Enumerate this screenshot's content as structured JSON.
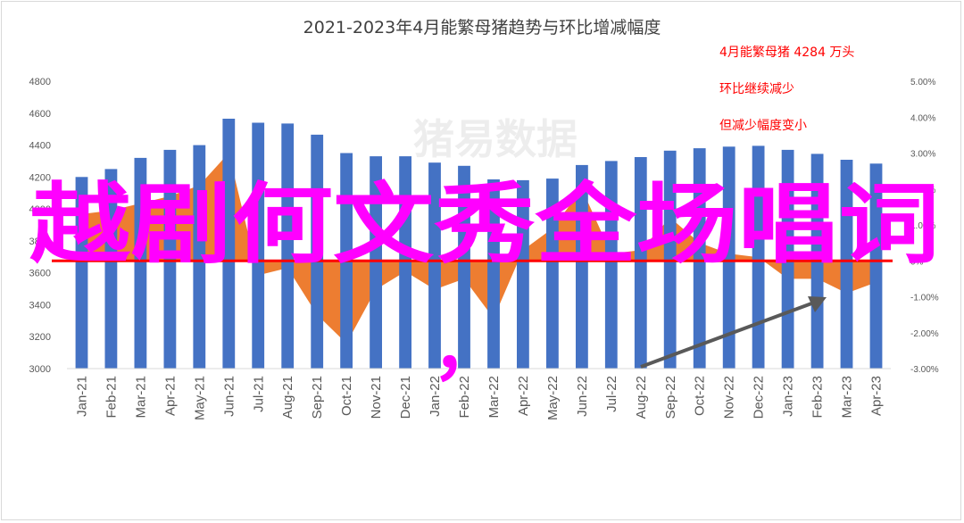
{
  "chart_data": {
    "type": "bar",
    "title": "2021-2023年4月能繁母猪趋势与环比增减幅度",
    "watermark": "猪易数据",
    "overlay_text": "越剧何文秀全场唱词",
    "overlay_comma": "，",
    "annotations": [
      "4月能繁母猪 4284 万头",
      "环比继续减少",
      "但减少幅度变小"
    ],
    "colors": {
      "bars": "#4472c4",
      "area": "#ed7d31",
      "reference_line": "#ff0000",
      "annotation_text": "#ff0000",
      "overlay_text": "#ff00ff",
      "arrow": "#595959",
      "grid": "#d9d9d9"
    },
    "categories": [
      "Jan-21",
      "Feb-21",
      "Mar-21",
      "Apr-21",
      "May-21",
      "Jun-21",
      "Jul-21",
      "Aug-21",
      "Sep-21",
      "Oct-21",
      "Nov-21",
      "Dec-21",
      "Jan-22",
      "Feb-22",
      "Mar-22",
      "Apr-22",
      "May-22",
      "Jun-22",
      "Jul-22",
      "Aug-22",
      "Sep-22",
      "Oct-22",
      "Nov-22",
      "Dec-22",
      "Jan-23",
      "Feb-23",
      "Mar-23",
      "Apr-23"
    ],
    "left_axis": {
      "ylim": [
        3000,
        4800
      ],
      "ticks": [
        "3000",
        "3200",
        "3400",
        "3600",
        "3800",
        "4000",
        "4200",
        "4400",
        "4600",
        "4800"
      ]
    },
    "right_axis": {
      "ylim": [
        -3.0,
        5.0
      ],
      "ticks": [
        "-3.00%",
        "-2.00%",
        "-1.00%",
        "0%",
        "1.00%",
        "2.00%",
        "3.00%",
        "4.00%",
        "5.00%"
      ]
    },
    "series": [
      {
        "axis": "left",
        "kind": "bar",
        "values": [
          4200,
          4250,
          4320,
          4370,
          4400,
          4565,
          4540,
          4535,
          4465,
          4350,
          4330,
          4330,
          4290,
          4270,
          4185,
          4180,
          4190,
          4275,
          4300,
          4325,
          4365,
          4380,
          4390,
          4395,
          4370,
          4345,
          4308,
          4284
        ]
      },
      {
        "axis": "right",
        "kind": "area",
        "values": [
          1.3,
          1.4,
          1.6,
          1.8,
          2.1,
          3.0,
          -0.4,
          -0.2,
          -1.5,
          -2.3,
          -0.8,
          -0.3,
          -0.8,
          -0.5,
          -1.6,
          0.3,
          0.9,
          2.0,
          0.2,
          0.3,
          1.2,
          0.5,
          0.2,
          0.1,
          -0.5,
          -0.5,
          -0.9,
          -0.6
        ]
      }
    ],
    "reference_line_value": 0,
    "grid": false,
    "legend": "none"
  }
}
